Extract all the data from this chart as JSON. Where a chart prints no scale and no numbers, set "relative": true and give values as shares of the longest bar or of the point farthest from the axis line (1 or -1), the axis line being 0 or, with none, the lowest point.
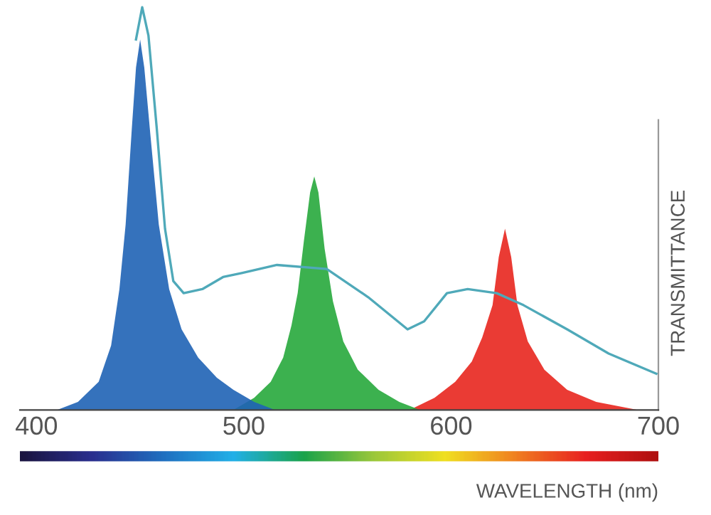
{
  "chart_data": {
    "type": "area",
    "relative": true,
    "xlabel": "WAVELENGTH (nm)",
    "ylabel": "TRANSMITTANCE",
    "xlim": [
      392,
      700
    ],
    "xticks": [
      400,
      500,
      600,
      700
    ],
    "grid": false,
    "legend": false,
    "series": [
      {
        "color": "#1f63b5",
        "x": [
          410,
          420,
          430,
          436,
          440,
          443,
          446,
          448,
          450,
          452,
          455,
          459,
          464,
          470,
          478,
          487,
          495,
          505,
          515
        ],
        "values": [
          0,
          0.02,
          0.07,
          0.16,
          0.3,
          0.46,
          0.7,
          0.85,
          0.92,
          0.85,
          0.68,
          0.46,
          0.3,
          0.2,
          0.13,
          0.08,
          0.05,
          0.02,
          0
        ]
      },
      {
        "color": "#27a83c",
        "x": [
          495,
          505,
          513,
          519,
          523,
          526,
          529,
          532,
          534,
          536,
          539,
          543,
          548,
          555,
          565,
          575,
          585
        ],
        "values": [
          0,
          0.03,
          0.07,
          0.13,
          0.21,
          0.29,
          0.42,
          0.54,
          0.58,
          0.54,
          0.4,
          0.27,
          0.17,
          0.1,
          0.05,
          0.02,
          0
        ]
      },
      {
        "color": "#e8261e",
        "x": [
          580,
          592,
          602,
          610,
          615,
          620,
          623,
          626,
          629,
          632,
          637,
          645,
          656,
          670,
          690
        ],
        "values": [
          0,
          0.03,
          0.07,
          0.12,
          0.18,
          0.26,
          0.38,
          0.45,
          0.38,
          0.26,
          0.17,
          0.1,
          0.05,
          0.02,
          0
        ]
      },
      {
        "type": "line",
        "color": "#4fa9b9",
        "x": [
          448,
          451,
          454,
          458,
          462,
          466,
          471,
          480,
          490,
          499,
          516,
          540,
          560,
          579,
          587,
          598,
          608,
          622,
          635,
          656,
          676,
          699
        ],
        "values": [
          0.92,
          1.0,
          0.93,
          0.7,
          0.45,
          0.32,
          0.29,
          0.3,
          0.33,
          0.34,
          0.36,
          0.35,
          0.28,
          0.2,
          0.22,
          0.29,
          0.3,
          0.29,
          0.26,
          0.2,
          0.14,
          0.09
        ]
      }
    ]
  }
}
